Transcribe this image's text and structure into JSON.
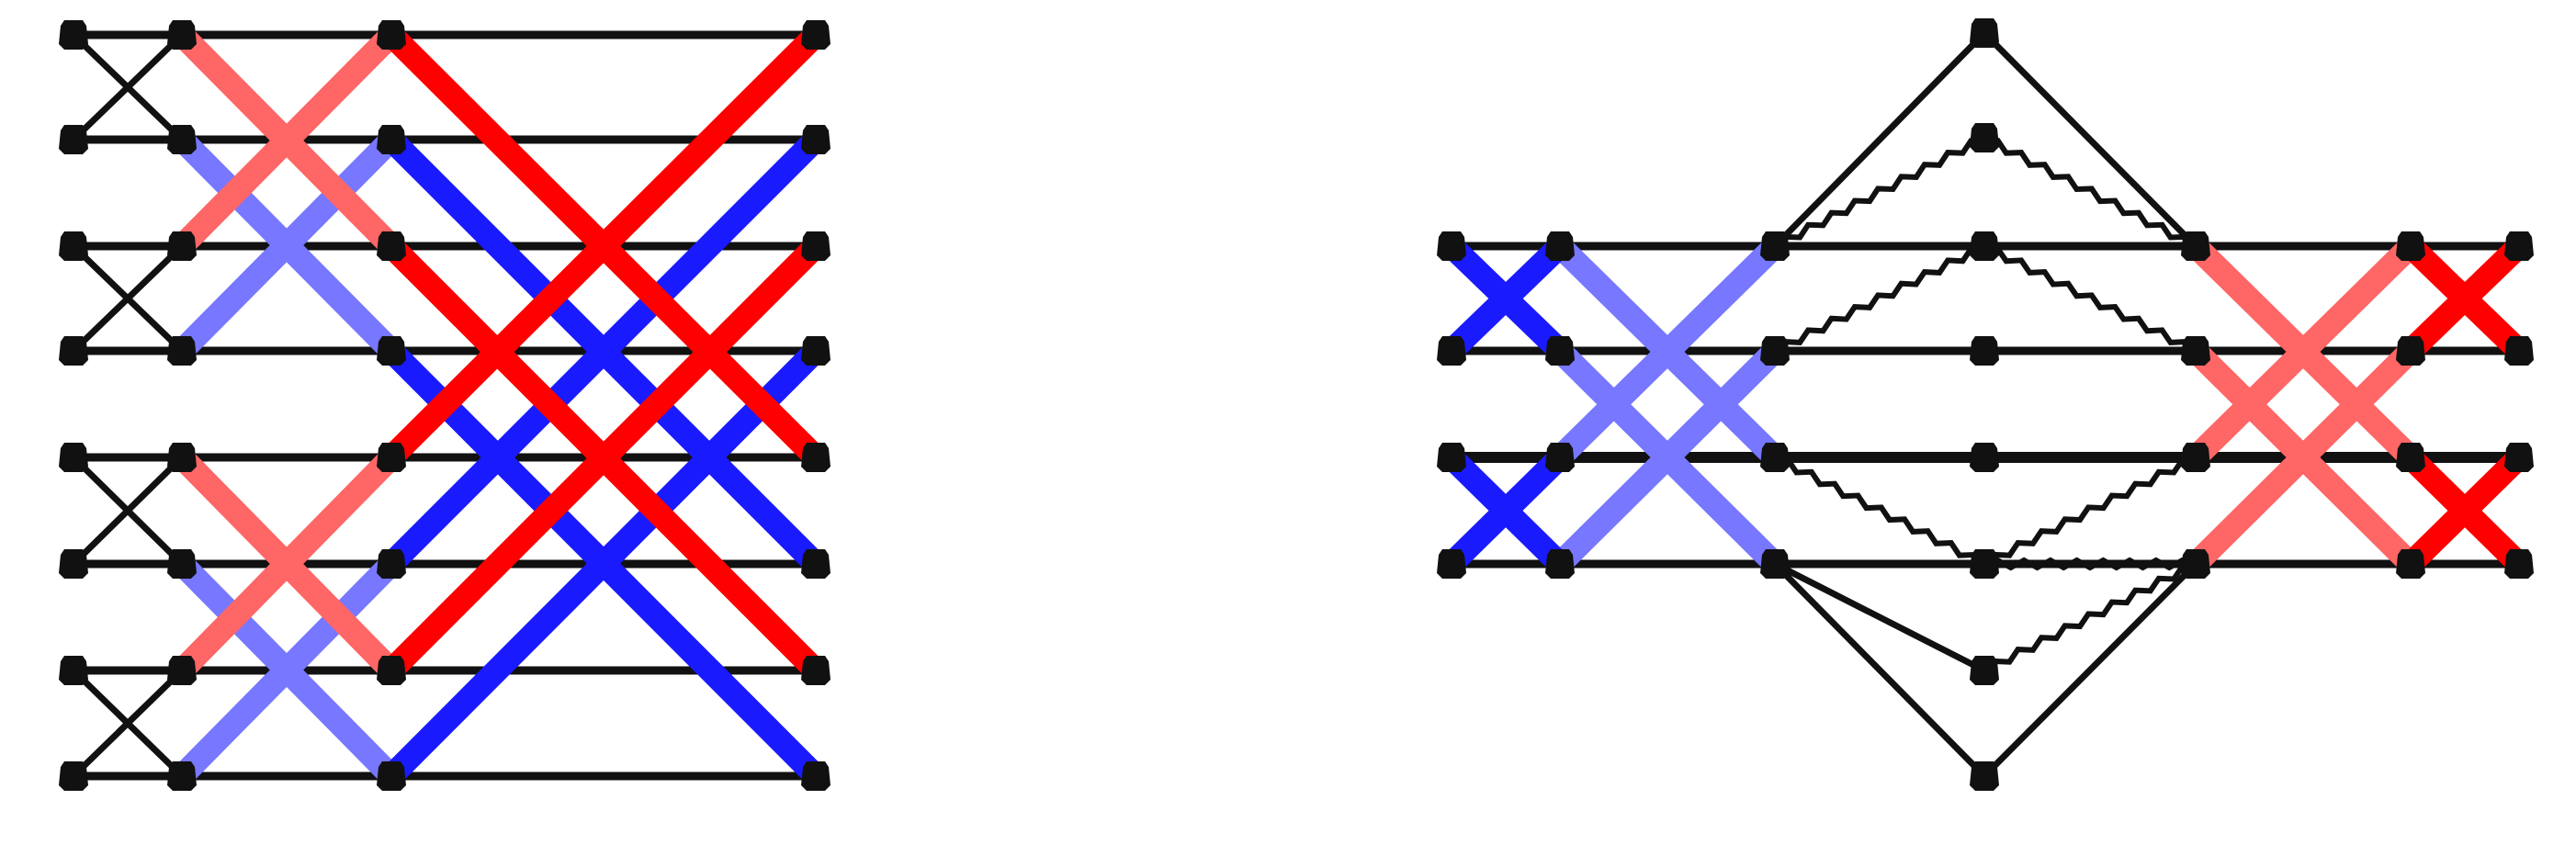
{
  "colors": {
    "background": "#ffffff",
    "wire": "#111111",
    "node": "#111111",
    "red_strong": "#ff0000",
    "red_light": "#ff6666",
    "blue_strong": "#1a1aff",
    "blue_light": "#7777ff"
  },
  "diagrams": [
    {
      "id": "left-butterfly-network",
      "lane_count": 8,
      "stage_count": 4,
      "links": [
        {
          "from": [
            0,
            0
          ],
          "to": [
            1,
            1
          ],
          "style": "thin"
        },
        {
          "from": [
            0,
            1
          ],
          "to": [
            1,
            0
          ],
          "style": "thin"
        },
        {
          "from": [
            0,
            2
          ],
          "to": [
            1,
            3
          ],
          "style": "thin"
        },
        {
          "from": [
            0,
            3
          ],
          "to": [
            1,
            2
          ],
          "style": "thin"
        },
        {
          "from": [
            0,
            4
          ],
          "to": [
            1,
            5
          ],
          "style": "thin"
        },
        {
          "from": [
            0,
            5
          ],
          "to": [
            1,
            4
          ],
          "style": "thin"
        },
        {
          "from": [
            0,
            6
          ],
          "to": [
            1,
            7
          ],
          "style": "thin"
        },
        {
          "from": [
            0,
            7
          ],
          "to": [
            1,
            6
          ],
          "style": "thin"
        },
        {
          "from": [
            1,
            0
          ],
          "to": [
            2,
            2
          ],
          "style": "red-light"
        },
        {
          "from": [
            1,
            2
          ],
          "to": [
            2,
            0
          ],
          "style": "red-light"
        },
        {
          "from": [
            1,
            1
          ],
          "to": [
            2,
            3
          ],
          "style": "blue-light"
        },
        {
          "from": [
            1,
            3
          ],
          "to": [
            2,
            1
          ],
          "style": "blue-light"
        },
        {
          "from": [
            1,
            4
          ],
          "to": [
            2,
            6
          ],
          "style": "red-light"
        },
        {
          "from": [
            1,
            6
          ],
          "to": [
            2,
            4
          ],
          "style": "red-light"
        },
        {
          "from": [
            1,
            5
          ],
          "to": [
            2,
            7
          ],
          "style": "blue-light"
        },
        {
          "from": [
            1,
            7
          ],
          "to": [
            2,
            5
          ],
          "style": "blue-light"
        },
        {
          "from": [
            2,
            0
          ],
          "to": [
            3,
            4
          ],
          "style": "red"
        },
        {
          "from": [
            2,
            4
          ],
          "to": [
            3,
            0
          ],
          "style": "red"
        },
        {
          "from": [
            2,
            2
          ],
          "to": [
            3,
            6
          ],
          "style": "red"
        },
        {
          "from": [
            2,
            6
          ],
          "to": [
            3,
            2
          ],
          "style": "red"
        },
        {
          "from": [
            2,
            1
          ],
          "to": [
            3,
            5
          ],
          "style": "blue"
        },
        {
          "from": [
            2,
            5
          ],
          "to": [
            3,
            1
          ],
          "style": "blue"
        },
        {
          "from": [
            2,
            3
          ],
          "to": [
            3,
            7
          ],
          "style": "blue"
        },
        {
          "from": [
            2,
            7
          ],
          "to": [
            3,
            3
          ],
          "style": "blue"
        }
      ]
    },
    {
      "id": "right-diamond-network",
      "lane_count": 4,
      "side_stage_count": 3,
      "center_node_count": 7,
      "links": [
        {
          "from": [
            "L",
            0,
            0
          ],
          "to": [
            "L",
            1,
            1
          ],
          "style": "blue"
        },
        {
          "from": [
            "L",
            0,
            1
          ],
          "to": [
            "L",
            1,
            0
          ],
          "style": "blue"
        },
        {
          "from": [
            "L",
            0,
            2
          ],
          "to": [
            "L",
            1,
            3
          ],
          "style": "blue"
        },
        {
          "from": [
            "L",
            0,
            3
          ],
          "to": [
            "L",
            1,
            2
          ],
          "style": "blue"
        },
        {
          "from": [
            "L",
            1,
            0
          ],
          "to": [
            "L",
            2,
            2
          ],
          "style": "blue-light"
        },
        {
          "from": [
            "L",
            1,
            2
          ],
          "to": [
            "L",
            2,
            0
          ],
          "style": "blue-light"
        },
        {
          "from": [
            "L",
            1,
            1
          ],
          "to": [
            "L",
            2,
            3
          ],
          "style": "blue-light"
        },
        {
          "from": [
            "L",
            1,
            3
          ],
          "to": [
            "L",
            2,
            1
          ],
          "style": "blue-light"
        },
        {
          "from": [
            "R",
            0,
            0
          ],
          "to": [
            "R",
            1,
            2
          ],
          "style": "red-light"
        },
        {
          "from": [
            "R",
            0,
            2
          ],
          "to": [
            "R",
            1,
            0
          ],
          "style": "red-light"
        },
        {
          "from": [
            "R",
            0,
            1
          ],
          "to": [
            "R",
            1,
            3
          ],
          "style": "red-light"
        },
        {
          "from": [
            "R",
            0,
            3
          ],
          "to": [
            "R",
            1,
            1
          ],
          "style": "red-light"
        },
        {
          "from": [
            "R",
            1,
            0
          ],
          "to": [
            "R",
            2,
            1
          ],
          "style": "red"
        },
        {
          "from": [
            "R",
            1,
            1
          ],
          "to": [
            "R",
            2,
            0
          ],
          "style": "red"
        },
        {
          "from": [
            "R",
            1,
            2
          ],
          "to": [
            "R",
            2,
            3
          ],
          "style": "red"
        },
        {
          "from": [
            "R",
            1,
            3
          ],
          "to": [
            "R",
            2,
            2
          ],
          "style": "red"
        },
        {
          "from": [
            "L",
            2,
            0
          ],
          "to": [
            "C",
            0
          ],
          "style": "thin"
        },
        {
          "from": [
            "C",
            0
          ],
          "to": [
            "R",
            0,
            0
          ],
          "style": "thin"
        },
        {
          "from": [
            "L",
            2,
            0
          ],
          "to": [
            "C",
            1
          ],
          "style": "zigzag"
        },
        {
          "from": [
            "C",
            1
          ],
          "to": [
            "R",
            0,
            0
          ],
          "style": "zigzag"
        },
        {
          "from": [
            "L",
            2,
            1
          ],
          "to": [
            "C",
            2
          ],
          "style": "zigzag"
        },
        {
          "from": [
            "C",
            2
          ],
          "to": [
            "R",
            0,
            1
          ],
          "style": "zigzag"
        },
        {
          "from": [
            "L",
            2,
            1
          ],
          "to": [
            "C",
            3
          ],
          "style": "thin"
        },
        {
          "from": [
            "C",
            3
          ],
          "to": [
            "R",
            0,
            1
          ],
          "style": "thin"
        },
        {
          "from": [
            "L",
            2,
            2
          ],
          "to": [
            "C",
            4
          ],
          "style": "thin"
        },
        {
          "from": [
            "C",
            4
          ],
          "to": [
            "R",
            0,
            2
          ],
          "style": "thin"
        },
        {
          "from": [
            "L",
            2,
            2
          ],
          "to": [
            "C",
            5
          ],
          "style": "zigzag"
        },
        {
          "from": [
            "C",
            5
          ],
          "to": [
            "R",
            0,
            3
          ],
          "style": "zigzag"
        },
        {
          "from": [
            "L",
            2,
            3
          ],
          "to": [
            "C",
            6
          ],
          "style": "thin"
        },
        {
          "from": [
            "C",
            6
          ],
          "to": [
            "R",
            0,
            3
          ],
          "style": "thin"
        },
        {
          "from": [
            "L",
            2,
            3
          ],
          "to": [
            "C",
            5
          ],
          "style": "thin"
        },
        {
          "from": [
            "C",
            5
          ],
          "to": [
            "R",
            0,
            2
          ],
          "style": "zigzag"
        }
      ]
    }
  ]
}
